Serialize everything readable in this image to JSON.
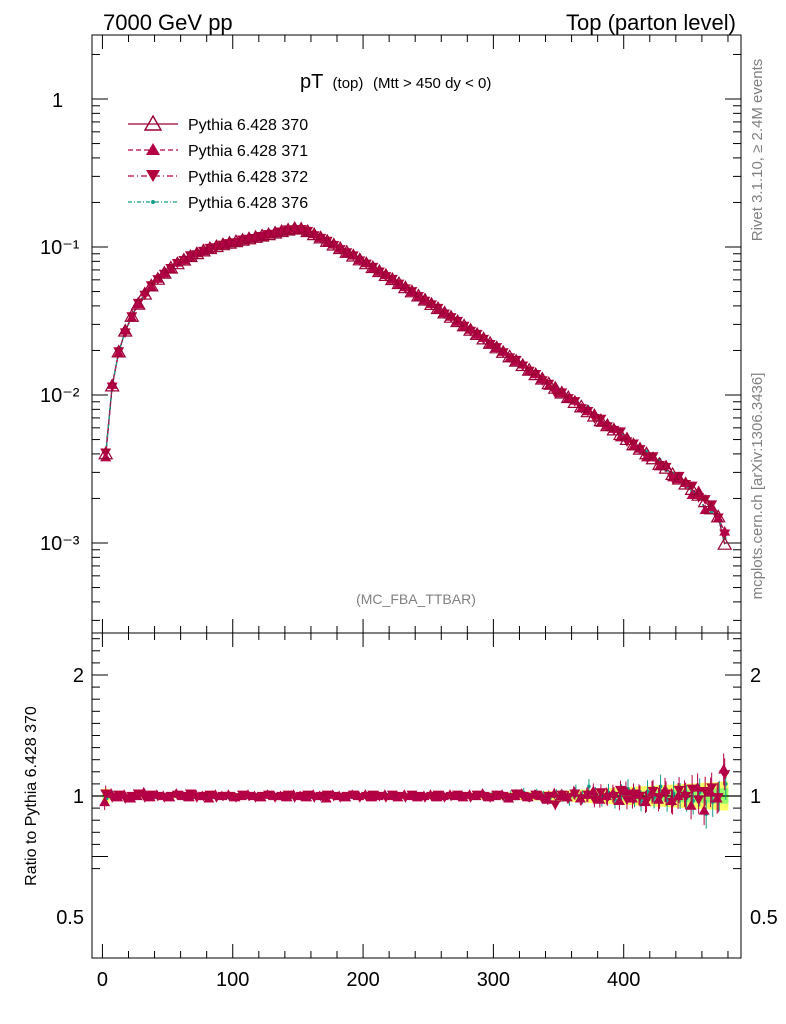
{
  "header": {
    "left": "7000 GeV pp",
    "right": "Top (parton level)"
  },
  "plot_title": {
    "main": "pT",
    "sub": "(top)",
    "cuts": "(Mtt > 450 dy < 0)"
  },
  "watermark": "(MC_FBA_TTBAR)",
  "side_text": {
    "rivet": "Rivet 3.1.10, ≥ 2.4M events",
    "source": "mcplots.cern.ch [arXiv:1306.3436]"
  },
  "ratio_ylabel": "Ratio to Pythia 6.428 370",
  "colors": {
    "s370": "#990033",
    "s371": "#b30047",
    "s372": "#b3003f",
    "s376": "#129c8a",
    "band_green": "#99ff66",
    "band_yellow": "#ffff66"
  },
  "chart_data": {
    "type": "line",
    "x_axis": {
      "range": [
        -8,
        490
      ],
      "ticks": [
        0,
        100,
        200,
        300,
        400
      ],
      "tick_labels": [
        "0",
        "100",
        "200",
        "300",
        "400"
      ]
    },
    "y_axis_main": {
      "scale": "log",
      "range": [
        0.00025,
        2.7
      ],
      "tick_labels": [
        "1",
        "10⁻¹",
        "10⁻²",
        "10⁻³"
      ],
      "tick_values": [
        1,
        0.1,
        0.01,
        0.001
      ]
    },
    "y_axis_ratio": {
      "range": [
        0.4,
        2.3
      ],
      "ticks": [
        0.5,
        1,
        2
      ],
      "tick_labels": [
        "0.5",
        "1",
        "2"
      ]
    },
    "legend": {
      "position": "top-left",
      "entries": [
        "Pythia 6.428 370",
        "Pythia 6.428 371",
        "Pythia 6.428 372",
        "Pythia 6.428 376"
      ]
    },
    "x": [
      2.5,
      7.5,
      12.5,
      17.5,
      22.5,
      27.5,
      32.5,
      37.5,
      42.5,
      47.5,
      52.5,
      57.5,
      62.5,
      67.5,
      72.5,
      77.5,
      82.5,
      87.5,
      92.5,
      97.5,
      102.5,
      107.5,
      112.5,
      117.5,
      122.5,
      127.5,
      132.5,
      137.5,
      142.5,
      147.5,
      152.5,
      157.5,
      162.5,
      167.5,
      172.5,
      177.5,
      182.5,
      187.5,
      192.5,
      197.5,
      202.5,
      207.5,
      212.5,
      217.5,
      222.5,
      227.5,
      232.5,
      237.5,
      242.5,
      247.5,
      252.5,
      257.5,
      262.5,
      267.5,
      272.5,
      277.5,
      282.5,
      287.5,
      292.5,
      297.5,
      302.5,
      307.5,
      312.5,
      317.5,
      322.5,
      327.5,
      332.5,
      337.5,
      342.5,
      347.5,
      352.5,
      357.5,
      362.5,
      367.5,
      372.5,
      377.5,
      382.5,
      387.5,
      392.5,
      397.5,
      402.5,
      407.5,
      412.5,
      417.5,
      422.5,
      427.5,
      432.5,
      437.5,
      442.5,
      447.5,
      452.5,
      457.5,
      462.5,
      467.5,
      472.5,
      477.5
    ],
    "series": [
      {
        "name": "Pythia 6.428 370",
        "values": [
          0.004,
          0.0115,
          0.0195,
          0.027,
          0.034,
          0.041,
          0.048,
          0.0545,
          0.0605,
          0.0665,
          0.072,
          0.077,
          0.0815,
          0.086,
          0.09,
          0.094,
          0.0975,
          0.1005,
          0.1035,
          0.106,
          0.1085,
          0.111,
          0.1135,
          0.116,
          0.1185,
          0.121,
          0.124,
          0.127,
          0.13,
          0.133,
          0.132,
          0.127,
          0.121,
          0.115,
          0.109,
          0.103,
          0.0975,
          0.092,
          0.0868,
          0.0818,
          0.077,
          0.0725,
          0.0682,
          0.0641,
          0.0602,
          0.0565,
          0.053,
          0.0497,
          0.0466,
          0.0437,
          0.0409,
          0.0383,
          0.0358,
          0.0335,
          0.0313,
          0.0293,
          0.0274,
          0.0256,
          0.0239,
          0.0223,
          0.0208,
          0.0194,
          0.0181,
          0.0169,
          0.0158,
          0.0147,
          0.0137,
          0.0128,
          0.0119,
          0.0111,
          0.0103,
          0.0096,
          0.0089,
          0.0083,
          0.0077,
          0.0072,
          0.0067,
          0.0062,
          0.0058,
          0.0054,
          0.005,
          0.0046,
          0.0043,
          0.004,
          0.0037,
          0.0034,
          0.0032,
          0.0029,
          0.0027,
          0.0025,
          0.0023,
          0.0021,
          0.0019,
          0.0017,
          0.0015,
          0.00098
        ]
      },
      {
        "name": "Pythia 6.428 371",
        "ratio": [
          0.95,
          1.02,
          0.99,
          1.01,
          0.98,
          1.0,
          1.03,
          0.99,
          1.01,
          1.0,
          0.99,
          1.02,
          1.0,
          0.99,
          1.01,
          1.0,
          0.98,
          1.01,
          1.0,
          1.01,
          0.99,
          1.0,
          1.01,
          1.0,
          0.99,
          1.01,
          1.0,
          1.0,
          0.99,
          1.01,
          1.0,
          0.99,
          1.01,
          1.0,
          0.98,
          1.01,
          1.0,
          0.99,
          1.01,
          1.0,
          1.01,
          0.99,
          1.0,
          1.01,
          1.0,
          0.99,
          1.01,
          1.0,
          0.99,
          1.0,
          1.01,
          0.99,
          1.0,
          1.01,
          1.0,
          0.99,
          1.01,
          1.0,
          1.02,
          0.99,
          1.0,
          1.01,
          0.98,
          1.0,
          1.02,
          0.99,
          1.01,
          1.0,
          0.97,
          1.02,
          1.0,
          0.99,
          1.03,
          0.98,
          1.01,
          1.04,
          0.97,
          1.0,
          1.02,
          0.96,
          1.04,
          0.98,
          1.01,
          0.95,
          1.03,
          0.97,
          1.05,
          0.96,
          1.0,
          1.02,
          0.92,
          1.07,
          0.88,
          1.03,
          0.98,
          1.22
        ]
      },
      {
        "name": "Pythia 6.428 372",
        "ratio": [
          1.02,
          0.99,
          1.01,
          0.98,
          1.0,
          1.02,
          0.99,
          1.01,
          1.0,
          0.99,
          1.0,
          1.01,
          1.0,
          1.02,
          0.99,
          1.0,
          1.01,
          0.99,
          1.0,
          1.0,
          0.99,
          1.01,
          1.0,
          0.99,
          1.0,
          1.01,
          0.99,
          1.0,
          1.01,
          0.99,
          1.0,
          1.01,
          0.99,
          1.0,
          1.01,
          1.0,
          0.99,
          1.0,
          1.01,
          0.99,
          1.0,
          1.01,
          1.0,
          0.99,
          1.01,
          1.0,
          0.99,
          1.01,
          1.0,
          0.99,
          1.0,
          1.01,
          0.99,
          1.0,
          1.01,
          1.0,
          0.99,
          1.01,
          1.0,
          0.99,
          1.01,
          1.0,
          0.99,
          1.02,
          1.0,
          0.99,
          1.01,
          0.98,
          1.0,
          0.93,
          1.01,
          0.99,
          1.02,
          0.98,
          1.01,
          0.97,
          1.03,
          0.99,
          1.0,
          1.05,
          0.97,
          1.02,
          1.0,
          0.96,
          1.04,
          0.99,
          1.02,
          0.95,
          1.05,
          1.0,
          1.06,
          0.97,
          1.04,
          1.07,
          0.99,
          1.18
        ]
      },
      {
        "name": "Pythia 6.428 376",
        "ratio": [
          0.98,
          1.01,
          1.0,
          0.99,
          1.01,
          1.0,
          0.99,
          1.01,
          1.0,
          1.0,
          0.99,
          1.01,
          1.0,
          0.99,
          1.01,
          1.0,
          1.0,
          0.99,
          1.01,
          1.0,
          0.99,
          1.0,
          1.01,
          1.0,
          0.99,
          1.0,
          1.01,
          1.0,
          0.99,
          1.0,
          1.01,
          1.0,
          1.0,
          0.99,
          1.01,
          1.0,
          0.99,
          1.0,
          1.01,
          1.0,
          0.99,
          1.0,
          1.01,
          1.0,
          0.99,
          1.0,
          1.01,
          1.0,
          0.99,
          1.0,
          1.01,
          1.0,
          0.99,
          1.0,
          1.01,
          1.0,
          0.99,
          1.0,
          1.01,
          1.0,
          1.0,
          0.99,
          1.01,
          1.0,
          1.03,
          0.99,
          1.02,
          1.0,
          0.98,
          1.01,
          1.0,
          0.97,
          1.04,
          0.99,
          1.08,
          1.01,
          0.98,
          1.03,
          0.97,
          1.02,
          1.06,
          0.99,
          0.96,
          1.04,
          0.99,
          1.08,
          0.97,
          1.02,
          1.0,
          0.98,
          0.96,
          1.03,
          0.85,
          0.95,
          1.0,
          1.1
        ]
      }
    ],
    "ratio_band": {
      "inner_halfwidth": [
        0.02,
        0.01,
        0.01,
        0.01,
        0.01,
        0.01,
        0.01,
        0.01,
        0.01,
        0.01,
        0.01,
        0.01,
        0.01,
        0.01,
        0.01,
        0.01,
        0.01,
        0.01,
        0.01,
        0.01,
        0.01,
        0.01,
        0.01,
        0.01,
        0.01,
        0.01,
        0.01,
        0.01,
        0.01,
        0.01,
        0.01,
        0.01,
        0.01,
        0.01,
        0.01,
        0.01,
        0.01,
        0.01,
        0.01,
        0.01,
        0.01,
        0.01,
        0.01,
        0.01,
        0.01,
        0.01,
        0.01,
        0.01,
        0.01,
        0.01,
        0.01,
        0.01,
        0.01,
        0.01,
        0.01,
        0.01,
        0.01,
        0.01,
        0.01,
        0.012,
        0.012,
        0.012,
        0.013,
        0.013,
        0.014,
        0.014,
        0.015,
        0.016,
        0.017,
        0.018,
        0.019,
        0.02,
        0.021,
        0.022,
        0.023,
        0.025,
        0.027,
        0.028,
        0.03,
        0.032,
        0.034,
        0.036,
        0.038,
        0.04,
        0.042,
        0.044,
        0.046,
        0.048,
        0.05,
        0.052,
        0.054,
        0.056,
        0.058,
        0.06,
        0.062,
        0.065
      ],
      "outer_halfwidth": [
        0.06,
        0.03,
        0.02,
        0.02,
        0.02,
        0.02,
        0.02,
        0.02,
        0.02,
        0.02,
        0.02,
        0.02,
        0.02,
        0.02,
        0.02,
        0.02,
        0.02,
        0.02,
        0.02,
        0.02,
        0.02,
        0.02,
        0.02,
        0.02,
        0.02,
        0.02,
        0.02,
        0.02,
        0.02,
        0.02,
        0.02,
        0.02,
        0.02,
        0.02,
        0.02,
        0.02,
        0.02,
        0.02,
        0.02,
        0.02,
        0.02,
        0.02,
        0.02,
        0.02,
        0.02,
        0.02,
        0.02,
        0.02,
        0.02,
        0.022,
        0.022,
        0.023,
        0.023,
        0.024,
        0.024,
        0.025,
        0.026,
        0.027,
        0.028,
        0.029,
        0.03,
        0.031,
        0.032,
        0.033,
        0.034,
        0.035,
        0.037,
        0.039,
        0.041,
        0.043,
        0.045,
        0.047,
        0.049,
        0.052,
        0.055,
        0.058,
        0.061,
        0.064,
        0.067,
        0.07,
        0.073,
        0.076,
        0.079,
        0.082,
        0.085,
        0.088,
        0.091,
        0.094,
        0.097,
        0.1,
        0.103,
        0.106,
        0.109,
        0.112,
        0.115,
        0.12
      ]
    }
  }
}
